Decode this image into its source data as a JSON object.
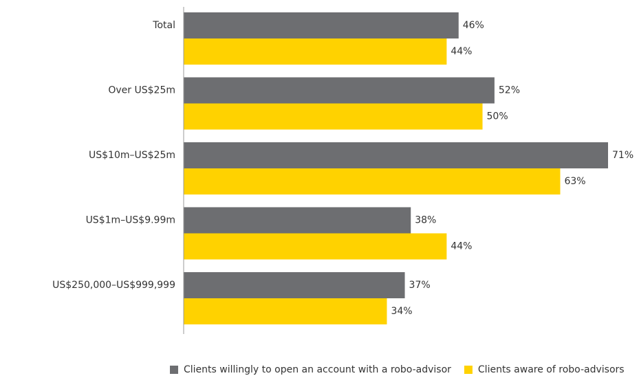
{
  "chart_data": {
    "type": "bar",
    "orientation": "horizontal",
    "categories": [
      "Total",
      "Over US$25m",
      "US$10m–US$25m",
      "US$1m–US$9.99m",
      "US$250,000–US$999,999"
    ],
    "series": [
      {
        "name": "Clients willingly to open an account with a robo-advisor",
        "color": "#6d6e71",
        "values": [
          46,
          52,
          71,
          38,
          37
        ],
        "value_labels": [
          "46%",
          "52%",
          "71%",
          "38%",
          "37%"
        ]
      },
      {
        "name": "Clients aware of robo-advisors",
        "color": "#ffd200",
        "values": [
          44,
          50,
          63,
          44,
          34
        ],
        "value_labels": [
          "44%",
          "50%",
          "63%",
          "44%",
          "34%"
        ]
      }
    ],
    "legend": "bottom"
  }
}
